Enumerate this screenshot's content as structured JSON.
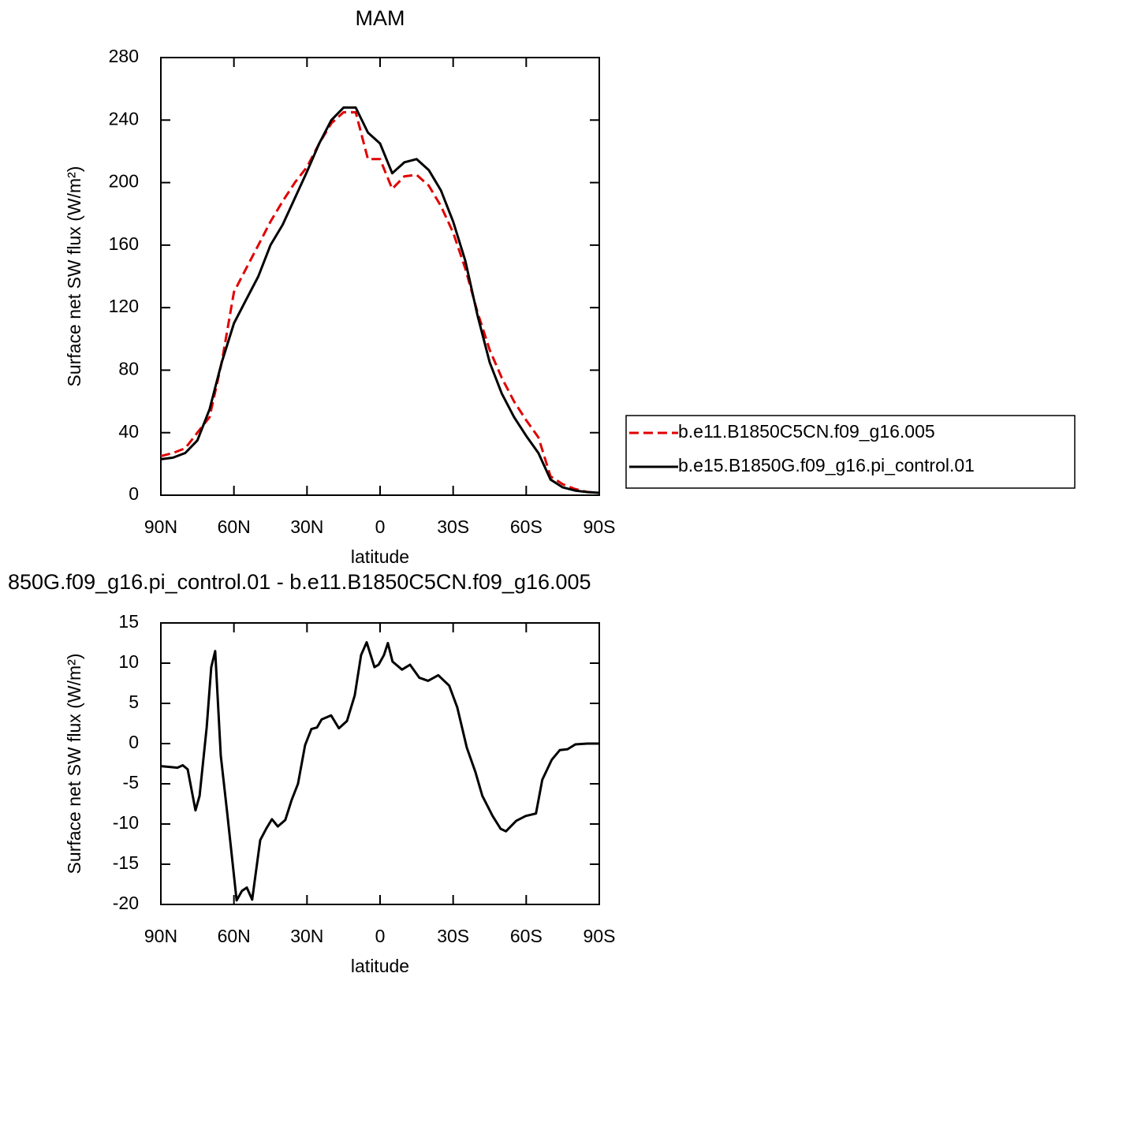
{
  "chart_data": [
    {
      "type": "line",
      "title": "MAM",
      "xlabel": "latitude",
      "ylabel": "Surface net SW flux (W/m²)",
      "xlim": [
        90,
        -90
      ],
      "xticks": [
        {
          "value": 90,
          "label": "90N"
        },
        {
          "value": 60,
          "label": "60N"
        },
        {
          "value": 30,
          "label": "30N"
        },
        0,
        {
          "value": -30,
          "label": "30S"
        },
        {
          "value": -60,
          "label": "60S"
        },
        {
          "value": -90,
          "label": "90S"
        }
      ],
      "ylim": [
        0,
        280
      ],
      "yticks": [
        0,
        40,
        80,
        120,
        160,
        200,
        240,
        280
      ],
      "legend": "right",
      "x": [
        90,
        85,
        80,
        75,
        70,
        65,
        60,
        55,
        50,
        45,
        40,
        35,
        30,
        25,
        20,
        15,
        10,
        5,
        0,
        -5,
        -10,
        -15,
        -20,
        -25,
        -30,
        -35,
        -40,
        -45,
        -50,
        -55,
        -60,
        -65,
        -70,
        -75,
        -80,
        -85,
        -90
      ],
      "series": [
        {
          "name": "b.e11.B1850C5CN.f09_g16.005",
          "color": "#e00000",
          "line_style": "dashed",
          "values": [
            25,
            27,
            30,
            40,
            50,
            85,
            130,
            145,
            160,
            175,
            188,
            200,
            210,
            225,
            238,
            245,
            245,
            215,
            215,
            196,
            204,
            205,
            198,
            185,
            168,
            145,
            117,
            93,
            75,
            60,
            48,
            37,
            12,
            7,
            4,
            2,
            1.5
          ]
        },
        {
          "name": "b.e15.B1850G.f09_g16.pi_control.01",
          "color": "#000000",
          "line_style": "solid",
          "values": [
            23,
            24,
            27,
            35,
            55,
            85,
            110,
            125,
            140,
            160,
            173,
            190,
            207,
            225,
            240,
            248,
            248,
            232,
            225,
            206,
            213,
            215,
            208,
            195,
            175,
            150,
            115,
            85,
            65,
            50,
            38,
            27,
            10,
            5,
            3,
            2,
            1.5
          ]
        }
      ]
    },
    {
      "type": "line",
      "title": "850G.f09_g16.pi_control.01 - b.e11.B1850C5CN.f09_g16.005",
      "xlabel": "latitude",
      "ylabel": "Surface net SW flux (W/m²)",
      "xlim": [
        90,
        -90
      ],
      "xticks": [
        {
          "value": 90,
          "label": "90N"
        },
        {
          "value": 60,
          "label": "60N"
        },
        {
          "value": 30,
          "label": "30N"
        },
        0,
        {
          "value": -30,
          "label": "30S"
        },
        {
          "value": -60,
          "label": "60S"
        },
        {
          "value": -90,
          "label": "90S"
        }
      ],
      "ylim": [
        -20,
        15
      ],
      "yticks": [
        -20,
        -15,
        -10,
        -5,
        0,
        5,
        10,
        15
      ],
      "x": [
        90,
        86.4,
        83.2,
        81,
        79,
        75.8,
        74.1,
        71.2,
        69.3,
        67.7,
        65.4,
        62.8,
        58.9,
        56.7,
        54.7,
        52.5,
        49.2,
        46.6,
        44.4,
        42,
        38.9,
        36.3,
        33.7,
        30.8,
        28.2,
        25.9,
        24,
        20.1,
        16.9,
        13.6,
        10.4,
        7.8,
        5.5,
        2.3,
        0.6,
        -1.6,
        -3.2,
        -5.1,
        -9,
        -12.3,
        -16.1,
        -19.7,
        -23.9,
        -28.4,
        -31.7,
        -35.6,
        -39.1,
        -42,
        -46.2,
        -49.5,
        -51.7,
        -55.9,
        -59.8,
        -64,
        -66.6,
        -70.5,
        -73.8,
        -77,
        -80.2,
        -85.1,
        -90
      ],
      "series": [
        {
          "color": "#000000",
          "line_style": "solid",
          "values": [
            -2.8,
            -2.9,
            -3.0,
            -2.7,
            -3.2,
            -8.3,
            -6.5,
            2.0,
            9.5,
            11.5,
            -1.5,
            -8.5,
            -19.5,
            -18.3,
            -17.9,
            -19.4,
            -12,
            -10.5,
            -9.4,
            -10.3,
            -9.5,
            -7,
            -5,
            -0.2,
            1.8,
            2.0,
            3.0,
            3.5,
            1.9,
            2.8,
            6,
            11,
            12.6,
            9.5,
            9.8,
            11,
            12.5,
            10.2,
            9.2,
            9.8,
            8.2,
            7.8,
            8.5,
            7.2,
            4.5,
            -0.5,
            -3.5,
            -6.5,
            -9,
            -10.6,
            -10.9,
            -9.6,
            -9.0,
            -8.7,
            -4.5,
            -2,
            -0.8,
            -0.7,
            -0.1,
            0,
            0
          ]
        }
      ]
    }
  ]
}
